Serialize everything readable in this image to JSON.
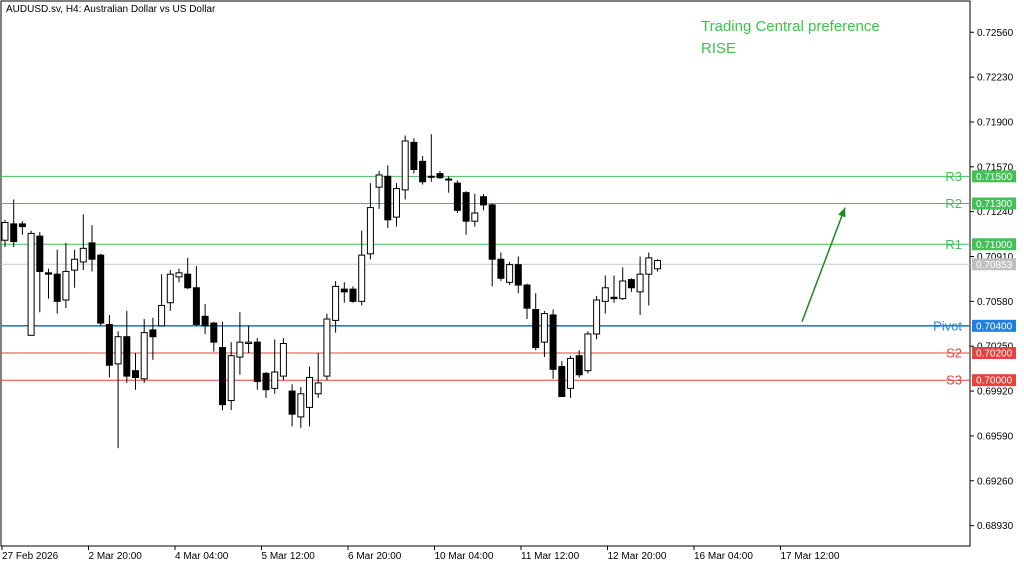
{
  "header": {
    "title": "AUDUSD.sv, H4:  Australian Dollar vs US Dollar"
  },
  "annotation": {
    "line1": "Trading Central preference",
    "line2": "RISE"
  },
  "colors": {
    "resistance": "#44c058",
    "support": "#e8403a",
    "pivot": "#1e7fe0",
    "arrow": "#1e8a1e",
    "label_text": "#ffffff",
    "current_price": "#c0c0c0"
  },
  "chart_data": {
    "type": "candlestick",
    "ylim": [
      0.6878,
      0.7279
    ],
    "price_ticks": [
      "0.72560",
      "0.72230",
      "0.71900",
      "0.71570",
      "0.71240",
      "0.70910",
      "0.70580",
      "0.70250",
      "0.69920",
      "0.69590",
      "0.69260",
      "0.68930"
    ],
    "time_labels": [
      "27 Feb 2026",
      "2 Mar 20:00",
      "4 Mar 04:00",
      "5 Mar 12:00",
      "6 Mar 20:00",
      "10 Mar 04:00",
      "11 Mar 12:00",
      "12 Mar 20:00",
      "16 Mar 04:00",
      "17 Mar 12:00"
    ],
    "current_price": "0.70853",
    "levels": [
      {
        "name": "R3",
        "value": 0.715,
        "label": "0.71500",
        "kind": "resistance"
      },
      {
        "name": "R2",
        "value": 0.713,
        "label": "0.71300",
        "kind": "resistance"
      },
      {
        "name": "R1",
        "value": 0.71,
        "label": "0.71000",
        "kind": "resistance"
      },
      {
        "name": "Pivot",
        "value": 0.704,
        "label": "0.70400",
        "kind": "pivot"
      },
      {
        "name": "S2",
        "value": 0.702,
        "label": "0.70200",
        "kind": "support"
      },
      {
        "name": "S3",
        "value": 0.7,
        "label": "0.70000",
        "kind": "support"
      }
    ],
    "arrow": {
      "from_price": 0.7043,
      "to_price": 0.7127,
      "direction": "up"
    },
    "candles": [
      [
        0.7103,
        0.7116,
        0.7098,
        0.7118
      ],
      [
        0.7115,
        0.7102,
        0.7098,
        0.7133
      ],
      [
        0.7115,
        0.7113,
        0.7107,
        0.7117
      ],
      [
        0.7033,
        0.7108,
        0.7033,
        0.711
      ],
      [
        0.7106,
        0.708,
        0.705,
        0.7109
      ],
      [
        0.7079,
        0.7078,
        0.706,
        0.7082
      ],
      [
        0.7078,
        0.7058,
        0.7049,
        0.7096
      ],
      [
        0.7059,
        0.708,
        0.7053,
        0.7101
      ],
      [
        0.7081,
        0.7089,
        0.7068,
        0.7096
      ],
      [
        0.7087,
        0.7097,
        0.7081,
        0.7122
      ],
      [
        0.7101,
        0.7089,
        0.708,
        0.7114
      ],
      [
        0.7092,
        0.7042,
        0.704,
        0.7093
      ],
      [
        0.7041,
        0.7011,
        0.7002,
        0.7048
      ],
      [
        0.7012,
        0.7032,
        0.695,
        0.7036
      ],
      [
        0.7032,
        0.7003,
        0.6998,
        0.7051
      ],
      [
        0.7007,
        0.7002,
        0.6993,
        0.702
      ],
      [
        0.7001,
        0.7035,
        0.6998,
        0.7045
      ],
      [
        0.7037,
        0.7032,
        0.7015,
        0.7046
      ],
      [
        0.704,
        0.7055,
        0.704,
        0.7078
      ],
      [
        0.7057,
        0.7078,
        0.7051,
        0.7081
      ],
      [
        0.7076,
        0.7079,
        0.7072,
        0.7082
      ],
      [
        0.7078,
        0.7068,
        0.7067,
        0.709
      ],
      [
        0.7068,
        0.7041,
        0.704,
        0.7084
      ],
      [
        0.7047,
        0.704,
        0.7034,
        0.7056
      ],
      [
        0.7042,
        0.7028,
        0.7021,
        0.7043
      ],
      [
        0.7024,
        0.6982,
        0.6978,
        0.7043
      ],
      [
        0.6985,
        0.7018,
        0.6978,
        0.7028
      ],
      [
        0.7017,
        0.7028,
        0.7004,
        0.705
      ],
      [
        0.7027,
        0.7028,
        0.702,
        0.704
      ],
      [
        0.7028,
        0.6999,
        0.6993,
        0.7031
      ],
      [
        0.7005,
        0.6993,
        0.6987,
        0.7006
      ],
      [
        0.6994,
        0.7006,
        0.699,
        0.703
      ],
      [
        0.7003,
        0.7027,
        0.7,
        0.7031
      ],
      [
        0.6992,
        0.6975,
        0.6966,
        0.6997
      ],
      [
        0.6973,
        0.699,
        0.6965,
        0.6995
      ],
      [
        0.698,
        0.7002,
        0.6966,
        0.701
      ],
      [
        0.699,
        0.6998,
        0.6987,
        0.702
      ],
      [
        0.7003,
        0.7045,
        0.7,
        0.7049
      ],
      [
        0.7044,
        0.7069,
        0.7035,
        0.7073
      ],
      [
        0.7067,
        0.7065,
        0.7057,
        0.7072
      ],
      [
        0.7067,
        0.7058,
        0.7057,
        0.7069
      ],
      [
        0.7058,
        0.7092,
        0.7055,
        0.711
      ],
      [
        0.7093,
        0.7127,
        0.7089,
        0.7145
      ],
      [
        0.7142,
        0.7151,
        0.7126,
        0.7154
      ],
      [
        0.715,
        0.7118,
        0.7112,
        0.7158
      ],
      [
        0.712,
        0.7141,
        0.7113,
        0.7145
      ],
      [
        0.714,
        0.7176,
        0.7133,
        0.718
      ],
      [
        0.7175,
        0.7155,
        0.7152,
        0.7178
      ],
      [
        0.7161,
        0.7146,
        0.7144,
        0.7165
      ],
      [
        0.715,
        0.715,
        0.7146,
        0.7181
      ],
      [
        0.7152,
        0.7149,
        0.7148,
        0.7154
      ],
      [
        0.7148,
        0.7148,
        0.7138,
        0.715
      ],
      [
        0.7145,
        0.7125,
        0.7123,
        0.7147
      ],
      [
        0.7138,
        0.7117,
        0.7107,
        0.7139
      ],
      [
        0.7117,
        0.7123,
        0.7113,
        0.7137
      ],
      [
        0.7135,
        0.7129,
        0.7125,
        0.7137
      ],
      [
        0.7129,
        0.7089,
        0.7069,
        0.713
      ],
      [
        0.7089,
        0.7075,
        0.7073,
        0.7094
      ],
      [
        0.7072,
        0.7085,
        0.707,
        0.7087
      ],
      [
        0.7085,
        0.707,
        0.7064,
        0.7091
      ],
      [
        0.707,
        0.7053,
        0.7045,
        0.7071
      ],
      [
        0.7052,
        0.7024,
        0.7022,
        0.7064
      ],
      [
        0.7028,
        0.7049,
        0.7017,
        0.7051
      ],
      [
        0.7048,
        0.7008,
        0.7001,
        0.7052
      ],
      [
        0.701,
        0.6988,
        0.6988,
        0.7014
      ],
      [
        0.6994,
        0.7016,
        0.6987,
        0.7018
      ],
      [
        0.7018,
        0.7004,
        0.7002,
        0.7022
      ],
      [
        0.7007,
        0.7034,
        0.7005,
        0.7036
      ],
      [
        0.7034,
        0.7059,
        0.703,
        0.7062
      ],
      [
        0.7058,
        0.7068,
        0.7049,
        0.7077
      ],
      [
        0.7061,
        0.706,
        0.7057,
        0.7077
      ],
      [
        0.706,
        0.7073,
        0.7059,
        0.7083
      ],
      [
        0.7074,
        0.7068,
        0.7065,
        0.7075
      ],
      [
        0.7065,
        0.7078,
        0.7048,
        0.7091
      ],
      [
        0.7078,
        0.709,
        0.7055,
        0.7094
      ],
      [
        0.7082,
        0.7088,
        0.708,
        0.7089
      ]
    ]
  }
}
